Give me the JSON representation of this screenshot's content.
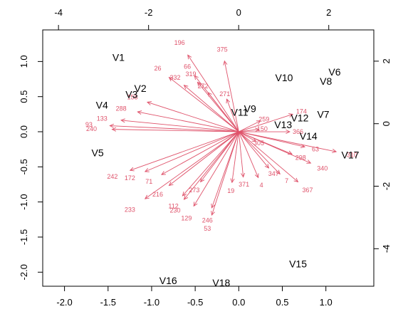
{
  "chart_data": {
    "type": "scatter",
    "subtype": "biplot",
    "title": "",
    "xlabel": "",
    "ylabel": "",
    "x_bottom": {
      "range": [
        -2.25,
        1.55
      ],
      "ticks": [
        -2.0,
        -1.5,
        -1.0,
        -0.5,
        0.0,
        0.5,
        1.0
      ],
      "tick_labels": [
        "-2.0",
        "-1.5",
        "-1.0",
        "-0.5",
        "0.0",
        "0.5",
        "1.0"
      ]
    },
    "y_left": {
      "range": [
        -2.2,
        1.45
      ],
      "ticks": [
        -2.0,
        -1.5,
        -1.0,
        -0.5,
        0.0,
        0.5,
        1.0
      ],
      "tick_labels": [
        "-2.0",
        "-1.5",
        "-1.0",
        "-0.5",
        "0.0",
        "0.5",
        "1.0"
      ]
    },
    "x_top": {
      "range": [
        -4.35,
        3.0
      ],
      "ticks": [
        -4,
        -2,
        0,
        2
      ],
      "tick_labels": [
        "-4",
        "-2",
        "0",
        "2"
      ]
    },
    "y_right": {
      "range": [
        -5.2,
        3.0
      ],
      "ticks": [
        -4,
        -2,
        0,
        2
      ],
      "tick_labels": [
        "-4",
        "-2",
        "0",
        "2"
      ]
    },
    "grid": false,
    "colors": {
      "observations": "#df536b",
      "variables": "#000000"
    },
    "variables": [
      {
        "name": "V1",
        "x": -1.38,
        "y": 1.06
      },
      {
        "name": "V2",
        "x": -1.13,
        "y": 0.62
      },
      {
        "name": "V3",
        "x": -1.23,
        "y": 0.53
      },
      {
        "name": "V4",
        "x": -1.57,
        "y": 0.38
      },
      {
        "name": "V5",
        "x": -1.62,
        "y": -0.3
      },
      {
        "name": "V6",
        "x": 1.1,
        "y": 0.85
      },
      {
        "name": "V7",
        "x": 0.97,
        "y": 0.25
      },
      {
        "name": "V8",
        "x": 1.0,
        "y": 0.72
      },
      {
        "name": "V9",
        "x": 0.13,
        "y": 0.33
      },
      {
        "name": "V10",
        "x": 0.52,
        "y": 0.77
      },
      {
        "name": "V11",
        "x": 0.01,
        "y": 0.28
      },
      {
        "name": "V12",
        "x": 0.7,
        "y": 0.2
      },
      {
        "name": "V13",
        "x": 0.51,
        "y": 0.1
      },
      {
        "name": "V14",
        "x": 0.8,
        "y": -0.06
      },
      {
        "name": "V15",
        "x": 0.68,
        "y": -1.88
      },
      {
        "name": "V16",
        "x": -0.81,
        "y": -2.12
      },
      {
        "name": "V17",
        "x": 1.28,
        "y": -0.33
      },
      {
        "name": "V18",
        "x": -0.2,
        "y": -2.15
      }
    ],
    "observations": [
      {
        "label": "196",
        "x": -0.68,
        "y": 1.27
      },
      {
        "label": "375",
        "x": -0.19,
        "y": 1.17
      },
      {
        "label": "66",
        "x": -0.59,
        "y": 0.93
      },
      {
        "label": "26",
        "x": -0.93,
        "y": 0.9
      },
      {
        "label": "319",
        "x": -0.55,
        "y": 0.82
      },
      {
        "label": "332",
        "x": -0.73,
        "y": 0.77
      },
      {
        "label": "272",
        "x": -0.41,
        "y": 0.65
      },
      {
        "label": "271",
        "x": -0.16,
        "y": 0.54
      },
      {
        "label": "158",
        "x": -1.22,
        "y": 0.49
      },
      {
        "label": "288",
        "x": -1.35,
        "y": 0.33
      },
      {
        "label": "259",
        "x": 0.29,
        "y": 0.18
      },
      {
        "label": "174",
        "x": 0.72,
        "y": 0.29
      },
      {
        "label": "133",
        "x": -1.57,
        "y": 0.19
      },
      {
        "label": "93",
        "x": -1.72,
        "y": 0.1
      },
      {
        "label": "240",
        "x": -1.69,
        "y": 0.04
      },
      {
        "label": "366",
        "x": 0.68,
        "y": 0.0
      },
      {
        "label": "150",
        "x": 0.27,
        "y": 0.04
      },
      {
        "label": "305",
        "x": 0.23,
        "y": -0.16
      },
      {
        "label": "298",
        "x": 0.71,
        "y": -0.37
      },
      {
        "label": "63",
        "x": 0.88,
        "y": -0.25
      },
      {
        "label": "340",
        "x": 0.96,
        "y": -0.52
      },
      {
        "label": "347",
        "x": 0.4,
        "y": -0.6
      },
      {
        "label": "7",
        "x": 0.55,
        "y": -0.7
      },
      {
        "label": "371",
        "x": 0.06,
        "y": -0.75
      },
      {
        "label": "4",
        "x": 0.26,
        "y": -0.76
      },
      {
        "label": "19",
        "x": -0.09,
        "y": -0.84
      },
      {
        "label": "367",
        "x": 0.79,
        "y": -0.83
      },
      {
        "label": "242",
        "x": -1.45,
        "y": -0.64
      },
      {
        "label": "172",
        "x": -1.25,
        "y": -0.66
      },
      {
        "label": "71",
        "x": -1.03,
        "y": -0.71
      },
      {
        "label": "216",
        "x": -0.93,
        "y": -0.89
      },
      {
        "label": "273",
        "x": -0.51,
        "y": -0.83
      },
      {
        "label": "233",
        "x": -1.25,
        "y": -1.11
      },
      {
        "label": "112",
        "x": -0.75,
        "y": -1.06
      },
      {
        "label": "230",
        "x": -0.73,
        "y": -1.12
      },
      {
        "label": "129",
        "x": -0.6,
        "y": -1.23
      },
      {
        "label": "246",
        "x": -0.36,
        "y": -1.26
      },
      {
        "label": "53",
        "x": -0.36,
        "y": -1.38
      },
      {
        "label": "310",
        "x": 1.3,
        "y": -0.33
      }
    ]
  }
}
